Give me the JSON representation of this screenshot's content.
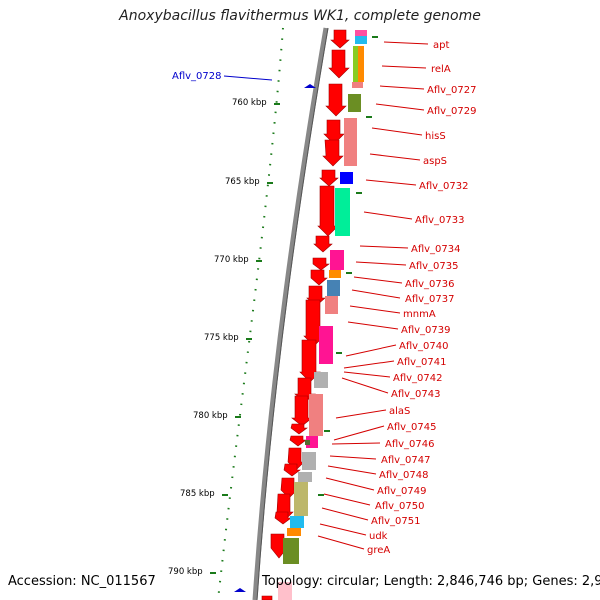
{
  "title": "Anoxybacillus flavithermus WK1, complete genome",
  "footer": {
    "accession": "Accession: NC_011567",
    "topology": "Topology: circular; Length: 2,846,746 bp; Genes: 2,932"
  },
  "colors": {
    "gene_arrow": "#ff0000",
    "backbone": "#7f7f7f",
    "label": "#d40000",
    "blue_label": "#0000cc",
    "tick": "#1a7a1a"
  },
  "left_label": "Aflv_0728",
  "kbp_ticks": [
    "760 kbp",
    "765 kbp",
    "770 kbp",
    "775 kbp",
    "780 kbp",
    "785 kbp",
    "790 kbp"
  ],
  "gene_labels": [
    "apt",
    "relA",
    "Aflv_0727",
    "Aflv_0729",
    "hisS",
    "aspS",
    "Aflv_0732",
    "Aflv_0733",
    "Aflv_0734",
    "Aflv_0735",
    "Aflv_0736",
    "Aflv_0737",
    "mnmA",
    "Aflv_0739",
    "Aflv_0740",
    "Aflv_0741",
    "Aflv_0742",
    "Aflv_0743",
    "alaS",
    "Aflv_0745",
    "Aflv_0746",
    "Aflv_0747",
    "Aflv_0748",
    "Aflv_0749",
    "Aflv_0750",
    "Aflv_0751",
    "udk",
    "greA"
  ],
  "cog_colors": [
    "#ff4fa0",
    "#22bbee",
    "#ff8a00",
    "#88cc22",
    "#6b8e23",
    "#f08080",
    "#0000ff",
    "#00ee99",
    "#ff1493",
    "#ff8c00",
    "#4682b4",
    "#b0b0b0",
    "#bdb76b",
    "#556b2f"
  ]
}
